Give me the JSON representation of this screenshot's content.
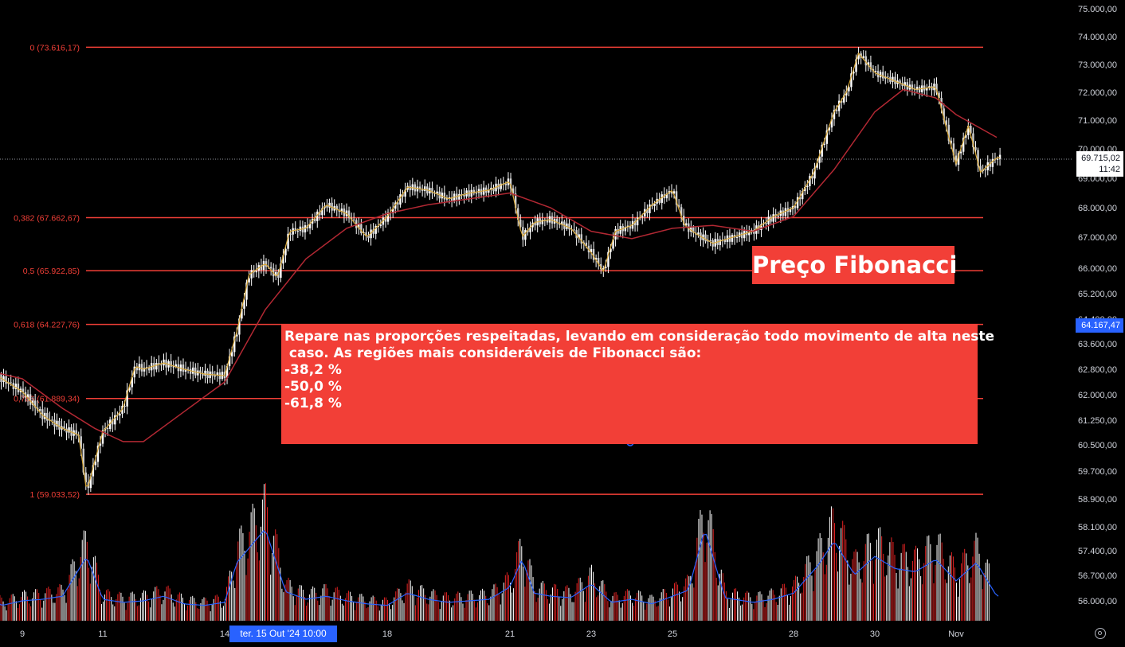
{
  "chart_data": {
    "type": "candlestick",
    "title": "",
    "y_axis": {
      "labels": [
        "75.000,00",
        "74.000,00",
        "73.000,00",
        "72.000,00",
        "71.000,00",
        "70.000,00",
        "69.000,00",
        "68.000,00",
        "67.000,00",
        "66.000,00",
        "65.200,00",
        "64.400,00",
        "63.600,00",
        "62.800,00",
        "62.000,00",
        "61.250,00",
        "60.500,00",
        "59.700,00",
        "58.900,00",
        "58.100,00",
        "57.400,00",
        "56.700,00",
        "56.000,00"
      ],
      "values": [
        75000,
        74000,
        73000,
        72000,
        71000,
        70000,
        69000,
        68000,
        67000,
        66000,
        65200,
        64400,
        63600,
        62800,
        62000,
        61250,
        60500,
        59700,
        58900,
        58100,
        57400,
        56700,
        56000
      ]
    },
    "x_axis": {
      "labels": [
        "9",
        "11",
        "14",
        "18",
        "21",
        "23",
        "25",
        "28",
        "30",
        "Nov"
      ],
      "positions": [
        9,
        11,
        14,
        18,
        21,
        23,
        25,
        28,
        30,
        32
      ]
    },
    "fib_levels": [
      {
        "label": "0 (73.616,17)",
        "ratio": 0,
        "price": 73616.17
      },
      {
        "label": "0,382 (67.662,67)",
        "ratio": 0.382,
        "price": 67662.67
      },
      {
        "label": "0,5 (65.922,85)",
        "ratio": 0.5,
        "price": 65922.85
      },
      {
        "label": "0,618 (64.227,76)",
        "ratio": 0.618,
        "price": 64227.76
      },
      {
        "label": "0,786 (61.889,34)",
        "ratio": 0.786,
        "price": 61889.34
      },
      {
        "label": "1 (59.033,52)",
        "ratio": 1,
        "price": 59033.52
      }
    ],
    "price_series": {
      "name": "",
      "x": [
        8.0,
        8.5,
        9.0,
        9.5,
        10.0,
        10.4,
        10.6,
        10.8,
        11.0,
        11.5,
        11.8,
        12.0,
        12.5,
        13.0,
        13.5,
        14.0,
        14.3,
        14.6,
        15.0,
        15.3,
        15.6,
        16.0,
        16.5,
        17.0,
        17.5,
        18.0,
        18.5,
        19.0,
        19.5,
        20.0,
        20.5,
        21.0,
        21.3,
        21.6,
        22.0,
        22.5,
        23.0,
        23.3,
        23.6,
        24.0,
        24.5,
        25.0,
        25.3,
        25.6,
        26.0,
        26.5,
        27.0,
        27.5,
        28.0,
        28.5,
        29.0,
        29.3,
        29.6,
        30.0,
        30.5,
        31.0,
        31.5,
        31.8,
        32.0,
        32.3,
        32.6,
        33.0
      ],
      "values": [
        62900,
        62500,
        62100,
        61400,
        61000,
        60800,
        59100,
        60000,
        60900,
        61600,
        62900,
        62800,
        63000,
        62800,
        62650,
        62600,
        64000,
        65800,
        66150,
        65700,
        67200,
        67300,
        68100,
        67800,
        67000,
        67700,
        68700,
        68600,
        68300,
        68500,
        68600,
        68900,
        67000,
        67500,
        67600,
        67300,
        66500,
        65900,
        67200,
        67400,
        68100,
        68600,
        67400,
        67100,
        66800,
        67000,
        67200,
        67700,
        68000,
        69200,
        71300,
        72000,
        73400,
        72700,
        72400,
        72100,
        72200,
        70500,
        69500,
        70800,
        69200,
        69700
      ]
    },
    "ma_series": {
      "name": "",
      "x": [
        8.0,
        9.0,
        10.0,
        10.8,
        11.5,
        12.0,
        13.0,
        14.0,
        15.0,
        16.0,
        17.0,
        18.0,
        19.0,
        20.0,
        21.0,
        22.0,
        23.0,
        24.0,
        25.0,
        26.0,
        27.0,
        28.0,
        29.0,
        30.0,
        30.7,
        31.5,
        32.0,
        33.0
      ],
      "values": [
        62800,
        62500,
        61600,
        61000,
        60600,
        60600,
        61500,
        62400,
        64700,
        66300,
        67300,
        67800,
        68100,
        68300,
        68500,
        68000,
        67200,
        66950,
        67300,
        67400,
        67200,
        67700,
        69300,
        71300,
        72100,
        71800,
        71200,
        70400
      ]
    },
    "volume": {
      "x": [
        8.0,
        8.5,
        9.0,
        9.5,
        10.0,
        10.6,
        11.0,
        11.5,
        12.0,
        12.5,
        13.0,
        13.5,
        14.0,
        14.3,
        15.0,
        15.5,
        16.0,
        16.5,
        17.0,
        17.5,
        18.0,
        18.5,
        19.0,
        19.5,
        20.0,
        20.5,
        21.0,
        21.3,
        21.6,
        22.0,
        22.5,
        23.0,
        23.5,
        24.0,
        24.5,
        25.0,
        25.4,
        25.8,
        26.3,
        27.0,
        27.5,
        28.0,
        28.6,
        29.0,
        29.5,
        30.0,
        30.5,
        31.0,
        31.5,
        32.0,
        32.5,
        33.0
      ],
      "values": [
        900,
        500,
        650,
        700,
        800,
        2100,
        700,
        600,
        650,
        800,
        550,
        500,
        600,
        1900,
        3000,
        950,
        700,
        800,
        650,
        550,
        500,
        900,
        700,
        600,
        650,
        700,
        1100,
        2000,
        900,
        800,
        750,
        1200,
        600,
        700,
        550,
        800,
        1000,
        3000,
        750,
        600,
        700,
        900,
        1800,
        2600,
        1500,
        2100,
        1700,
        1600,
        2000,
        1300,
        1900,
        800
      ]
    },
    "y_range": [
      55500,
      75000
    ],
    "x_range": [
      8,
      33.7
    ],
    "annotations": {
      "title_box": "Preço Fibonacci",
      "note_lines": [
        "Repare nas proporções respeitadas, levando em consideração todo movimento de alta neste",
        " caso. As regiões mais consideráveis de Fibonacci são:",
        "",
        "-38,2 %",
        "-50,0 %",
        "-61,8 %"
      ]
    },
    "current_price": {
      "label": "69.715,02",
      "timer": "11:42"
    },
    "crosshair_price": "64.167,47",
    "crosshair_time": "ter. 15 Out '24   10:00",
    "grid": false,
    "colors": {
      "background": "#000000",
      "fib_line": "#f23f37",
      "candle": "#ffffff",
      "ma_line": "#b22833",
      "fast_line": "#d8a83a",
      "volume_up": "#ffffff",
      "volume_down": "#e52323",
      "volume_ma": "#2962ff",
      "axis_text": "#d1d4dc"
    }
  }
}
